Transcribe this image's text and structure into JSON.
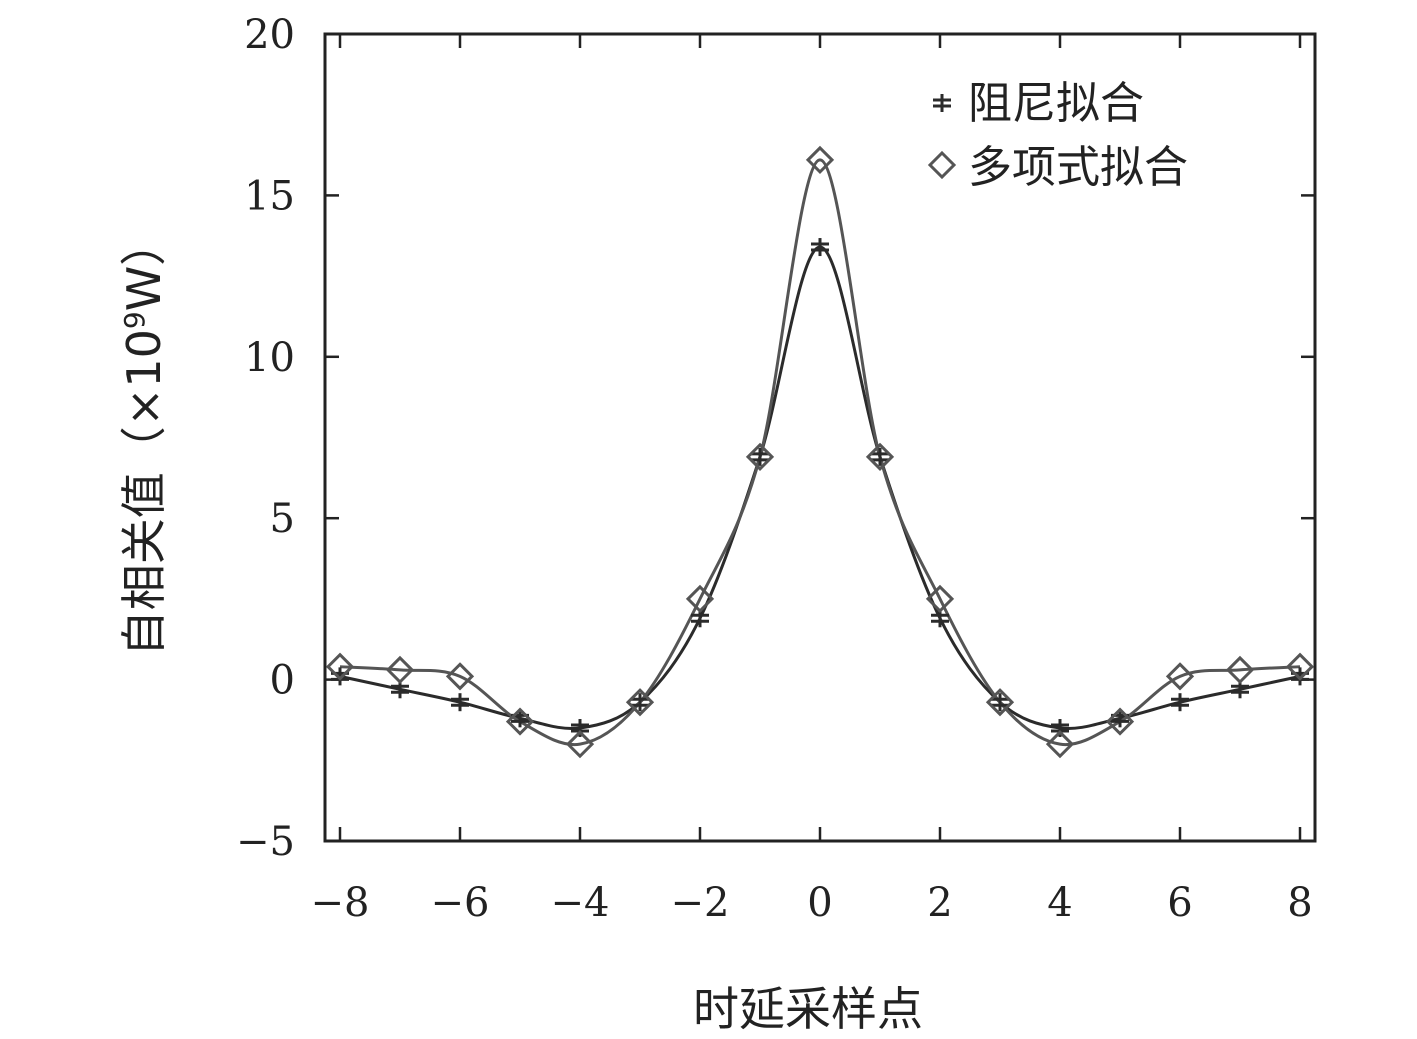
{
  "chart_data": {
    "type": "line",
    "xlabel": "时延采样点",
    "ylabel": "自相关值",
    "ylabel_unit": "（×10",
    "ylabel_exp": "9",
    "ylabel_unit_end": "W）",
    "xlim": [
      -8.25,
      8.25
    ],
    "ylim": [
      -5,
      20
    ],
    "xticks": [
      -8,
      -6,
      -4,
      -2,
      0,
      2,
      4,
      6,
      8
    ],
    "xtick_labels": [
      "−8",
      "−6",
      "−4",
      "−2",
      "0",
      "2",
      "4",
      "6",
      "8"
    ],
    "yticks": [
      -5,
      0,
      5,
      10,
      15,
      20
    ],
    "ytick_labels": [
      "−5",
      "0",
      "5",
      "10",
      "15",
      "20"
    ],
    "legend_position": "top-right",
    "series": [
      {
        "name": "阻尼拟合",
        "marker": "asterisk",
        "color": "#2b2b2b",
        "x": [
          -8,
          -7,
          -6,
          -5,
          -4,
          -3,
          -2,
          -1,
          0,
          1,
          2,
          3,
          4,
          5,
          6,
          7,
          8
        ],
        "y": [
          0.1,
          -0.3,
          -0.7,
          -1.2,
          -1.5,
          -0.7,
          1.9,
          6.9,
          13.4,
          6.9,
          1.9,
          -0.7,
          -1.5,
          -1.2,
          -0.7,
          -0.3,
          0.1
        ]
      },
      {
        "name": "多项式拟合",
        "marker": "diamond",
        "color": "#555555",
        "x": [
          -8,
          -7,
          -6,
          -5,
          -4,
          -3,
          -2,
          -1,
          0,
          1,
          2,
          3,
          4,
          5,
          6,
          7,
          8
        ],
        "y": [
          0.4,
          0.3,
          0.1,
          -1.3,
          -2.0,
          -0.7,
          2.5,
          6.9,
          16.1,
          6.9,
          2.5,
          -0.7,
          -2.0,
          -1.3,
          0.1,
          0.3,
          0.4
        ]
      }
    ]
  }
}
